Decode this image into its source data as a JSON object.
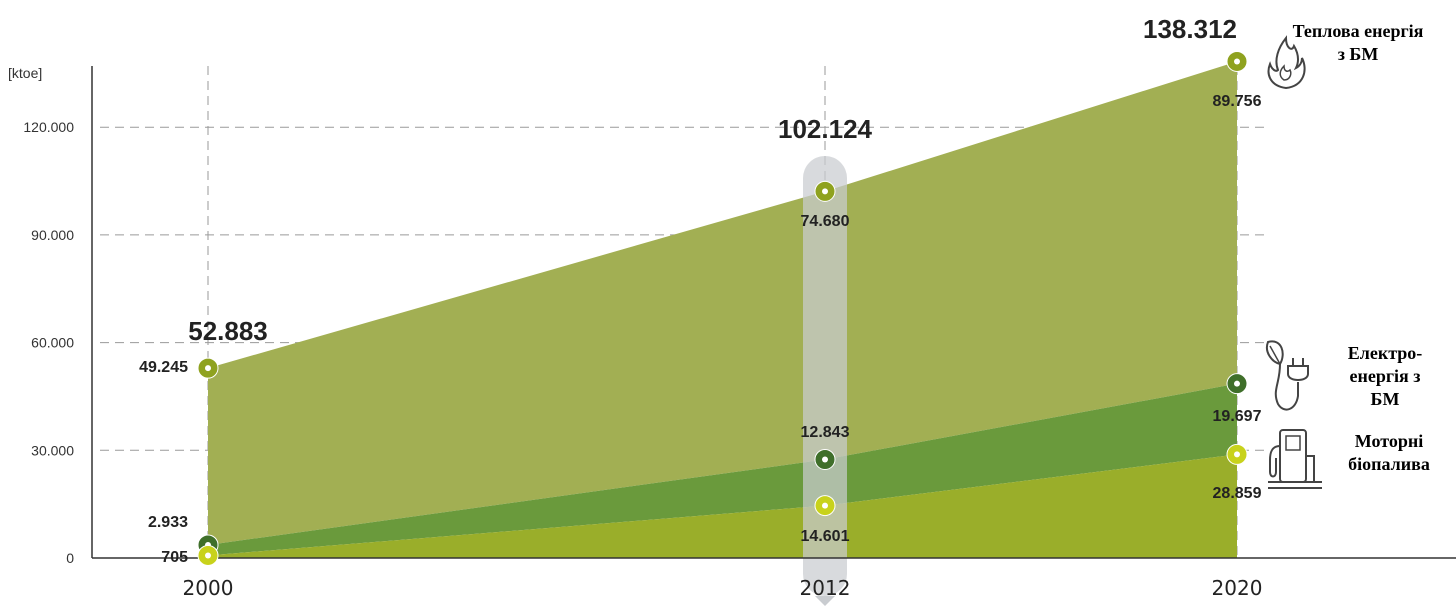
{
  "chart_data": {
    "type": "area",
    "unit_label": "[ktoe]",
    "x": [
      "2000",
      "2012",
      "2020"
    ],
    "y_ticks": [
      "0",
      "30.000",
      "60.000",
      "90.000",
      "120.000"
    ],
    "ylim": [
      0,
      140000
    ],
    "grid": true,
    "series": [
      {
        "name": "Теплова енергія з БМ",
        "values": [
          49245,
          74680,
          89756
        ],
        "labels": [
          "49.245",
          "74.680",
          "89.756"
        ],
        "color": "#a2af53",
        "marker_color": "#8fa21f"
      },
      {
        "name": "Електро-енергія з БМ",
        "values": [
          2933,
          12843,
          19697
        ],
        "labels": [
          "2.933",
          "12.843",
          "19.697"
        ],
        "color": "#6a9a3c",
        "marker_color": "#3f6f2a"
      },
      {
        "name": "Моторні біопалива",
        "values": [
          705,
          14601,
          28859
        ],
        "labels": [
          "705",
          "14.601",
          "28.859"
        ],
        "color": "#9aae2a",
        "marker_color": "#c8d21c"
      }
    ],
    "totals": [
      52883,
      102124,
      138312
    ],
    "total_labels": [
      "52.883",
      "102.124",
      "138.312"
    ],
    "highlight_category": "2012",
    "legend_placement": "right"
  },
  "legend": [
    {
      "text": "Теплова енергія з БМ",
      "icon": "flame-icon"
    },
    {
      "text": "Електро-енергія з БМ",
      "icon": "plug-leaf-icon"
    },
    {
      "text": "Моторні біопалива",
      "icon": "fuel-pump-icon"
    }
  ]
}
